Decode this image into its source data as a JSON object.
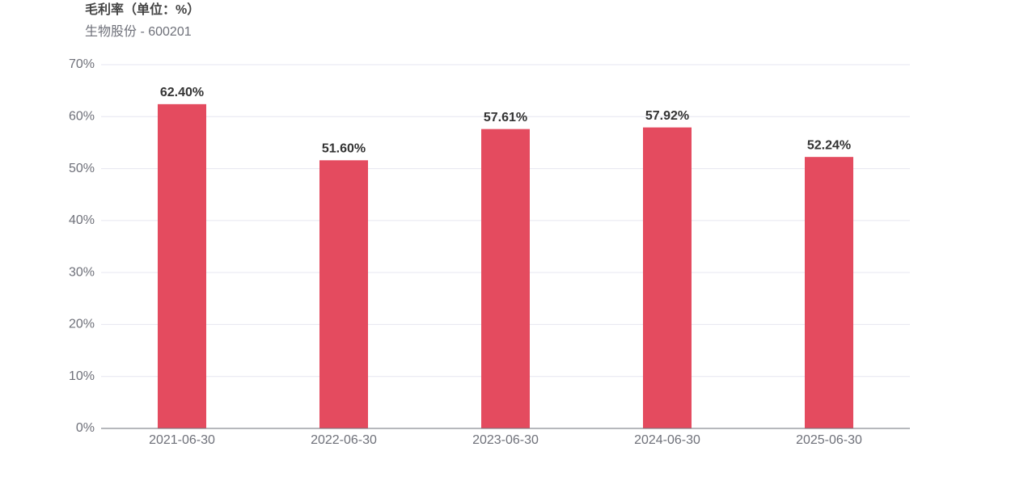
{
  "chart_data": {
    "type": "bar",
    "title": "毛利率（单位：%）",
    "subtitle": "生物股份 - 600201",
    "categories": [
      "2021-06-30",
      "2022-06-30",
      "2023-06-30",
      "2024-06-30",
      "2025-06-30"
    ],
    "values": [
      62.4,
      51.6,
      57.61,
      57.92,
      52.24
    ],
    "value_labels": [
      "62.40%",
      "51.60%",
      "57.61%",
      "57.92%",
      "52.24%"
    ],
    "color": "#e44b5f",
    "ylim": [
      0,
      70
    ],
    "yticks": [
      {
        "value": 0,
        "label": "0%"
      },
      {
        "value": 10,
        "label": "10%"
      },
      {
        "value": 20,
        "label": "20%"
      },
      {
        "value": 30,
        "label": "30%"
      },
      {
        "value": 40,
        "label": "40%"
      },
      {
        "value": 50,
        "label": "50%"
      },
      {
        "value": 60,
        "label": "60%"
      },
      {
        "value": 70,
        "label": "70%"
      }
    ],
    "grid": true
  }
}
